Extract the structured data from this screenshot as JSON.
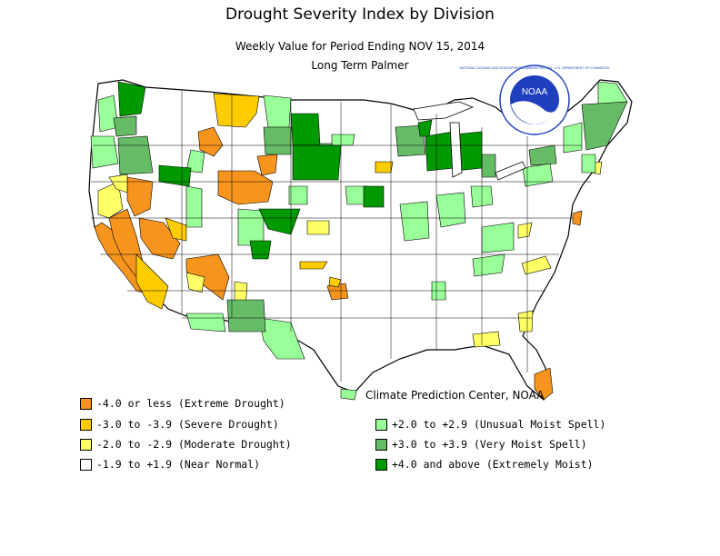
{
  "title": "Drought Severity Index by Division",
  "subtitle": "Weekly Value for Period Ending NOV 15, 2014",
  "subsubtitle": "Long Term Palmer",
  "credit": "Climate Prediction Center, NOAA",
  "logo": {
    "center_text": "NOAA",
    "ring_text": "NATIONAL OCEANIC AND ATMOSPHERIC ADMINISTRATION · U.S. DEPARTMENT OF COMMERCE"
  },
  "colors": {
    "extreme_drought": "#f7941d",
    "severe_drought": "#ffcc00",
    "moderate_drought": "#ffff66",
    "near_normal": "#ffffff",
    "unusual_moist": "#99ff99",
    "very_moist": "#66bb66",
    "extremely_moist": "#009900",
    "noaa_blue": "#1f3fbf"
  },
  "legend": [
    {
      "label": "-4.0 or less (Extreme Drought)",
      "color": "#f7941d"
    },
    {
      "label": "-3.0 to -3.9 (Severe Drought)",
      "color": "#ffcc00"
    },
    {
      "label": "-2.0 to -2.9 (Moderate Drought)",
      "color": "#ffff66"
    },
    {
      "label": "-1.9 to +1.9 (Near Normal)",
      "color": "#ffffff"
    },
    {
      "label": "+2.0 to +2.9 (Unusual Moist Spell)",
      "color": "#99ff99"
    },
    {
      "label": "+3.0 to +3.9 (Very Moist Spell)",
      "color": "#66bb66"
    },
    {
      "label": "+4.0 and above (Extremely Moist)",
      "color": "#009900"
    }
  ]
}
